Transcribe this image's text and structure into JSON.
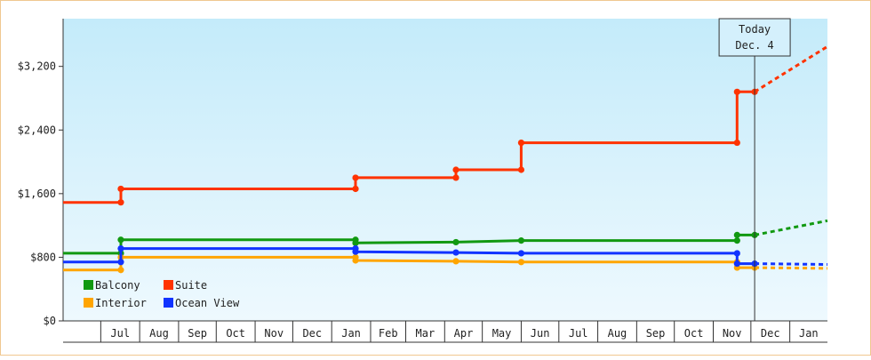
{
  "chart_data": {
    "type": "line",
    "step": true,
    "y_min": 0,
    "y_max": 3800,
    "y_ticks": [
      {
        "value": 0,
        "label": "$0"
      },
      {
        "value": 800,
        "label": "$800"
      },
      {
        "value": 1600,
        "label": "$1,600"
      },
      {
        "value": 2400,
        "label": "$2,400"
      },
      {
        "value": 3200,
        "label": "$3,200"
      }
    ],
    "x_range": [
      "2022-06-01",
      "2024-01-31"
    ],
    "months": [
      {
        "start": "2022-06-01",
        "label": ""
      },
      {
        "start": "2022-07-01",
        "label": "Jul"
      },
      {
        "start": "2022-08-01",
        "label": "Aug"
      },
      {
        "start": "2022-09-01",
        "label": "Sep"
      },
      {
        "start": "2022-10-01",
        "label": "Oct"
      },
      {
        "start": "2022-11-01",
        "label": "Nov"
      },
      {
        "start": "2022-12-01",
        "label": "Dec"
      },
      {
        "start": "2023-01-01",
        "label": "Jan"
      },
      {
        "start": "2023-02-01",
        "label": "Feb"
      },
      {
        "start": "2023-03-01",
        "label": "Mar"
      },
      {
        "start": "2023-04-01",
        "label": "Apr"
      },
      {
        "start": "2023-05-01",
        "label": "May"
      },
      {
        "start": "2023-06-01",
        "label": "Jun"
      },
      {
        "start": "2023-07-01",
        "label": "Jul"
      },
      {
        "start": "2023-08-01",
        "label": "Aug"
      },
      {
        "start": "2023-09-01",
        "label": "Sep"
      },
      {
        "start": "2023-10-01",
        "label": "Oct"
      },
      {
        "start": "2023-11-01",
        "label": "Nov"
      },
      {
        "start": "2023-12-01",
        "label": "Dec"
      },
      {
        "start": "2024-01-01",
        "label": "Jan"
      }
    ],
    "today": {
      "date": "2023-12-04",
      "line1": "Today",
      "line2": "Dec. 4"
    },
    "series": [
      {
        "name": "Balcony",
        "color": "#119911",
        "points": [
          [
            "2022-06-01",
            850
          ],
          [
            "2022-07-17",
            850
          ],
          [
            "2022-07-17",
            1020
          ],
          [
            "2023-01-20",
            1020
          ],
          [
            "2023-01-20",
            980
          ],
          [
            "2023-04-10",
            990
          ],
          [
            "2023-06-01",
            1010
          ],
          [
            "2023-11-20",
            1010
          ],
          [
            "2023-11-20",
            1080
          ],
          [
            "2023-12-04",
            1080
          ]
        ],
        "projection": [
          [
            "2023-12-04",
            1080
          ],
          [
            "2024-01-31",
            1260
          ]
        ]
      },
      {
        "name": "Suite",
        "color": "#ff3300",
        "points": [
          [
            "2022-06-01",
            1490
          ],
          [
            "2022-07-17",
            1490
          ],
          [
            "2022-07-17",
            1660
          ],
          [
            "2023-01-20",
            1660
          ],
          [
            "2023-01-20",
            1800
          ],
          [
            "2023-04-10",
            1800
          ],
          [
            "2023-04-10",
            1900
          ],
          [
            "2023-06-01",
            1900
          ],
          [
            "2023-06-01",
            2240
          ],
          [
            "2023-11-20",
            2240
          ],
          [
            "2023-11-20",
            2880
          ],
          [
            "2023-12-04",
            2880
          ]
        ],
        "projection": [
          [
            "2023-12-04",
            2880
          ],
          [
            "2024-01-31",
            3450
          ]
        ]
      },
      {
        "name": "Interior",
        "color": "#ffa500",
        "points": [
          [
            "2022-06-01",
            640
          ],
          [
            "2022-07-17",
            640
          ],
          [
            "2022-07-17",
            800
          ],
          [
            "2023-01-20",
            800
          ],
          [
            "2023-01-20",
            760
          ],
          [
            "2023-04-10",
            750
          ],
          [
            "2023-06-01",
            740
          ],
          [
            "2023-11-20",
            740
          ],
          [
            "2023-11-20",
            670
          ],
          [
            "2023-12-04",
            670
          ]
        ],
        "projection": [
          [
            "2023-12-04",
            670
          ],
          [
            "2024-01-31",
            660
          ]
        ]
      },
      {
        "name": "Ocean View",
        "color": "#1133ff",
        "points": [
          [
            "2022-06-01",
            740
          ],
          [
            "2022-07-17",
            740
          ],
          [
            "2022-07-17",
            910
          ],
          [
            "2023-01-20",
            910
          ],
          [
            "2023-01-20",
            870
          ],
          [
            "2023-04-10",
            860
          ],
          [
            "2023-06-01",
            850
          ],
          [
            "2023-11-20",
            850
          ],
          [
            "2023-11-20",
            720
          ],
          [
            "2023-12-04",
            720
          ]
        ],
        "projection": [
          [
            "2023-12-04",
            720
          ],
          [
            "2024-01-31",
            710
          ]
        ]
      }
    ],
    "legend": {
      "position": "bottom-left",
      "columns": 2
    }
  }
}
